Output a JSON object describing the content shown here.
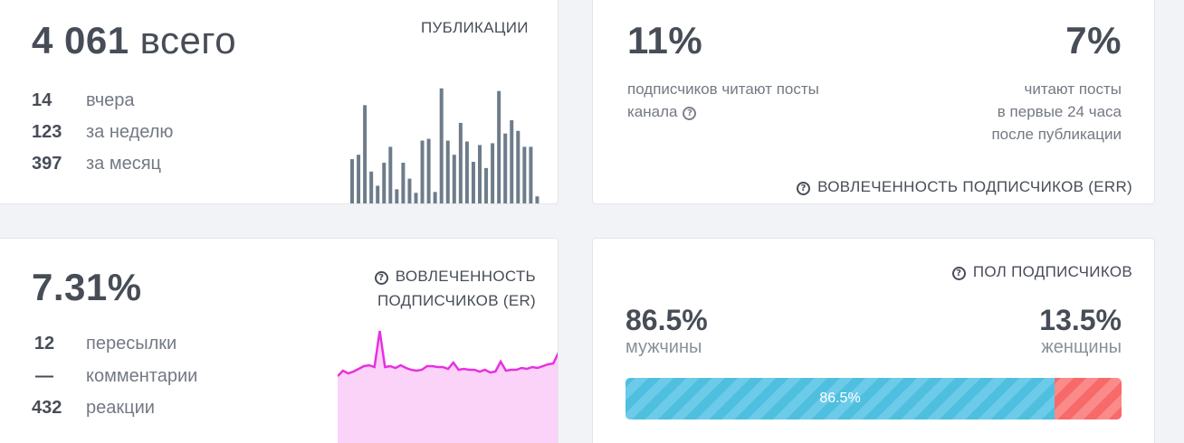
{
  "publications": {
    "total": "4 061",
    "total_unit": "всего",
    "caption": "ПУБЛИКАЦИИ",
    "stats": [
      {
        "num": "14",
        "label": "вчера"
      },
      {
        "num": "123",
        "label": "за неделю"
      },
      {
        "num": "397",
        "label": "за месяц"
      }
    ]
  },
  "err": {
    "left_value": "11%",
    "left_text_1": "подписчиков читают посты",
    "left_text_2": "канала",
    "right_value": "7%",
    "right_text_1": "читают посты",
    "right_text_2": "в первые 24 часа",
    "right_text_3": "после публикации",
    "caption": "ВОВЛЕЧЕННОСТЬ ПОДПИСЧИКОВ (ERR)"
  },
  "er": {
    "value": "7.31%",
    "caption_1": "ВОВЛЕЧЕННОСТЬ",
    "caption_2": "ПОДПИСЧИКОВ (ER)",
    "stats": [
      {
        "num": "12",
        "label": "пересылки"
      },
      {
        "num": "—",
        "label": "комментарии"
      },
      {
        "num": "432",
        "label": "реакции"
      }
    ]
  },
  "sex": {
    "caption": "ПОЛ ПОДПИСЧИКОВ",
    "male_pct": "86.5%",
    "male_label": "мужчины",
    "female_pct": "13.5%",
    "female_label": "женщины",
    "bar_label": "86.5%",
    "male_fraction": 0.865,
    "male_color": "#4fbfe0",
    "female_color": "#f76a6a"
  },
  "chart_data": [
    {
      "type": "bar",
      "values": [
        52,
        57,
        113,
        38,
        22,
        48,
        66,
        18,
        48,
        30,
        14,
        73,
        75,
        15,
        132,
        73,
        57,
        93,
        72,
        49,
        68,
        42,
        70,
        129,
        81,
        96,
        84,
        66,
        66,
        10
      ],
      "color": "#6e7c8a"
    },
    {
      "type": "area",
      "values": [
        84,
        90,
        87,
        89,
        92,
        95,
        96,
        94,
        134,
        94,
        95,
        93,
        96,
        93,
        91,
        90,
        91,
        95,
        95,
        94,
        94,
        92,
        99,
        91,
        92,
        91,
        91,
        89,
        91,
        88,
        89,
        100,
        90,
        91,
        91,
        93,
        92,
        94,
        93,
        95,
        97,
        98,
        110
      ],
      "color": "#e830e0",
      "fill": "#fbd2f8"
    }
  ]
}
